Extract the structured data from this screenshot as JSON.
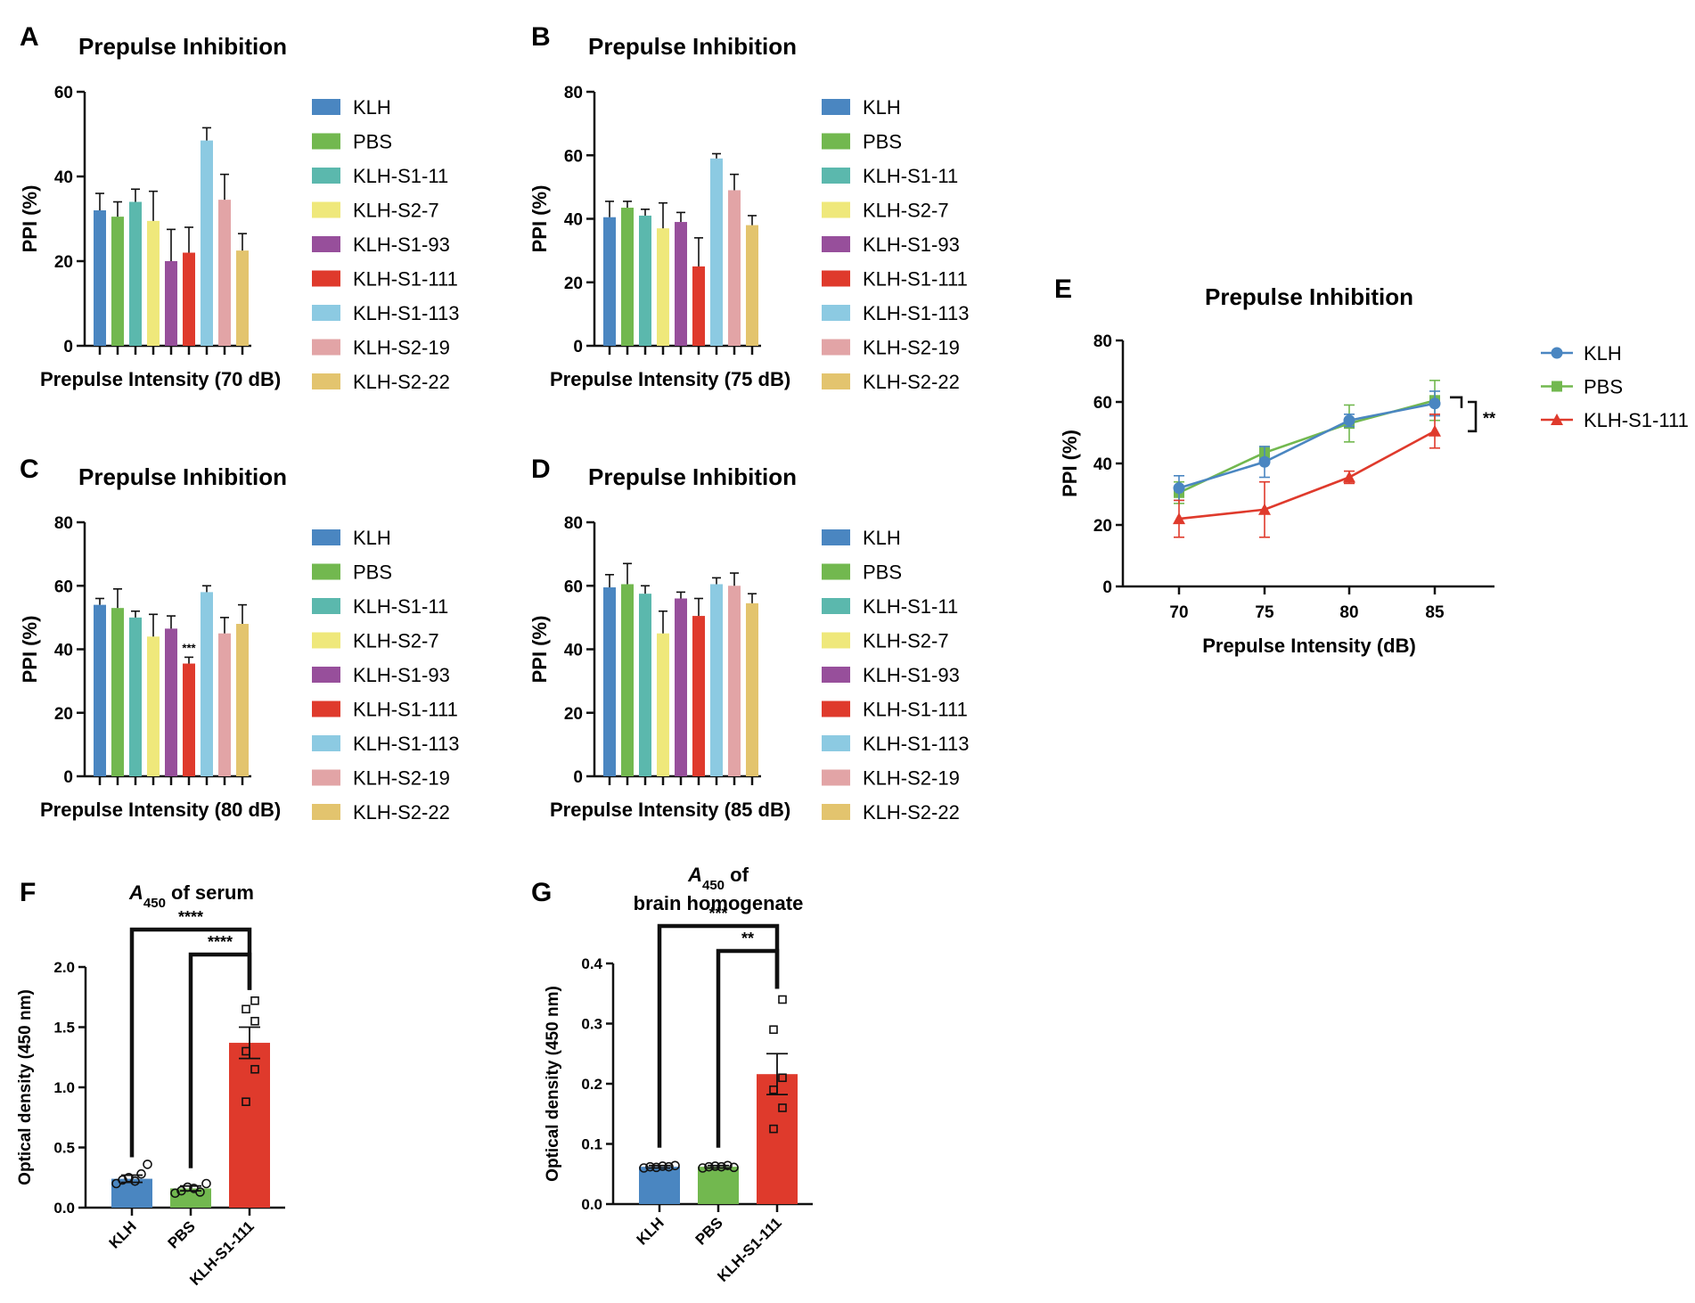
{
  "colors": {
    "KLH": "#4a86c1",
    "PBS": "#72b84f",
    "KLH-S1-11": "#5bb8ad",
    "KLH-S2-7": "#efe87b",
    "KLH-S1-93": "#974f9b",
    "KLH-S1-111": "#df3a2c",
    "KLH-S1-113": "#8ccae2",
    "KLH-S2-19": "#e2a4a6",
    "KLH-S2-22": "#e3c46e"
  },
  "chart_data": [
    {
      "panel": "A",
      "type": "bar",
      "title": "Prepulse Inhibition",
      "xlabel": "Prepulse Intensity (70 dB)",
      "ylabel": "PPI (%)",
      "ylim": [
        0,
        60
      ],
      "yticks": [
        0,
        20,
        40,
        60
      ],
      "categories": [
        "KLH",
        "PBS",
        "KLH-S1-11",
        "KLH-S2-7",
        "KLH-S1-93",
        "KLH-S1-111",
        "KLH-S1-113",
        "KLH-S2-19",
        "KLH-S2-22"
      ],
      "values": [
        32,
        30.5,
        34,
        29.5,
        20,
        22,
        48.5,
        34.5,
        22.5
      ],
      "errors": [
        4,
        3.5,
        3,
        7,
        7.5,
        6,
        3,
        6,
        4
      ],
      "annotations": []
    },
    {
      "panel": "B",
      "type": "bar",
      "title": "Prepulse Inhibition",
      "xlabel": "Prepulse Intensity (75 dB)",
      "ylabel": "PPI (%)",
      "ylim": [
        0,
        80
      ],
      "yticks": [
        0,
        20,
        40,
        60,
        80
      ],
      "categories": [
        "KLH",
        "PBS",
        "KLH-S1-11",
        "KLH-S2-7",
        "KLH-S1-93",
        "KLH-S1-111",
        "KLH-S1-113",
        "KLH-S2-19",
        "KLH-S2-22"
      ],
      "values": [
        40.5,
        43.5,
        41,
        37,
        39,
        25,
        59,
        49,
        38
      ],
      "errors": [
        5,
        2,
        2,
        8,
        3,
        9,
        1.5,
        5,
        3
      ],
      "annotations": []
    },
    {
      "panel": "C",
      "type": "bar",
      "title": "Prepulse Inhibition",
      "xlabel": "Prepulse Intensity (80 dB)",
      "ylabel": "PPI (%)",
      "ylim": [
        0,
        80
      ],
      "yticks": [
        0,
        20,
        40,
        60,
        80
      ],
      "categories": [
        "KLH",
        "PBS",
        "KLH-S1-11",
        "KLH-S2-7",
        "KLH-S1-93",
        "KLH-S1-111",
        "KLH-S1-113",
        "KLH-S2-19",
        "KLH-S2-22"
      ],
      "values": [
        54,
        53,
        50,
        44,
        46.5,
        35.5,
        58,
        45,
        48
      ],
      "errors": [
        2,
        6,
        2,
        7,
        4,
        2,
        2,
        5,
        6
      ],
      "annotations": [
        {
          "index": 5,
          "text": "***"
        }
      ]
    },
    {
      "panel": "D",
      "type": "bar",
      "title": "Prepulse Inhibition",
      "xlabel": "Prepulse Intensity (85 dB)",
      "ylabel": "PPI (%)",
      "ylim": [
        0,
        80
      ],
      "yticks": [
        0,
        20,
        40,
        60,
        80
      ],
      "categories": [
        "KLH",
        "PBS",
        "KLH-S1-11",
        "KLH-S2-7",
        "KLH-S1-93",
        "KLH-S1-111",
        "KLH-S1-113",
        "KLH-S2-19",
        "KLH-S2-22"
      ],
      "values": [
        59.5,
        60.5,
        57.5,
        45,
        56,
        50.5,
        60.5,
        60,
        54.5
      ],
      "errors": [
        4,
        6.5,
        2.5,
        7,
        2,
        5.5,
        2,
        4,
        3
      ],
      "annotations": []
    },
    {
      "panel": "E",
      "type": "line",
      "title": "Prepulse Inhibition",
      "xlabel": "Prepulse Intensity (dB)",
      "ylabel": "PPI (%)",
      "x": [
        70,
        75,
        80,
        85
      ],
      "ylim": [
        0,
        80
      ],
      "yticks": [
        0,
        20,
        40,
        60,
        80
      ],
      "series": [
        {
          "name": "KLH",
          "values": [
            32,
            40.5,
            54,
            59.5
          ],
          "errors": [
            4,
            5,
            2,
            4
          ],
          "marker": "circle"
        },
        {
          "name": "PBS",
          "values": [
            30.5,
            43.5,
            53,
            60.5
          ],
          "errors": [
            3.5,
            2,
            6,
            6.5
          ],
          "marker": "square"
        },
        {
          "name": "KLH-S1-111",
          "values": [
            22,
            25,
            35.5,
            50.5
          ],
          "errors": [
            6,
            9,
            2,
            5.5
          ],
          "marker": "triangle"
        }
      ],
      "significance": "**"
    },
    {
      "panel": "F",
      "type": "bar",
      "title_main": "A",
      "title_sub": "450",
      "title_rest": " of serum",
      "title_line2": "",
      "ylabel": "Optical density (450 nm)",
      "ylim": [
        0,
        2.0
      ],
      "yticks": [
        "0.0",
        "0.5",
        "1.0",
        "1.5",
        "2.0"
      ],
      "ytick_values": [
        0,
        0.5,
        1.0,
        1.5,
        2.0
      ],
      "categories": [
        "KLH",
        "PBS",
        "KLH-S1-111"
      ],
      "values": [
        0.24,
        0.16,
        1.37
      ],
      "errors": [
        0.03,
        0.02,
        0.13
      ],
      "points": [
        [
          0.2,
          0.23,
          0.25,
          0.22,
          0.28,
          0.36
        ],
        [
          0.12,
          0.14,
          0.17,
          0.16,
          0.13,
          0.2
        ],
        [
          0.88,
          1.15,
          1.3,
          1.55,
          1.65,
          1.72
        ]
      ],
      "comparisons": [
        {
          "from": 0,
          "to": 2,
          "text": "****"
        },
        {
          "from": 1,
          "to": 2,
          "text": "****"
        }
      ]
    },
    {
      "panel": "G",
      "type": "bar",
      "title_main": "A",
      "title_sub": "450",
      "title_rest": " of",
      "title_line2": "brain homogenate",
      "ylabel": "Optical density (450 nm)",
      "ylim": [
        0,
        0.4
      ],
      "yticks": [
        "0.0",
        "0.1",
        "0.2",
        "0.3",
        "0.4"
      ],
      "ytick_values": [
        0,
        0.1,
        0.2,
        0.3,
        0.4
      ],
      "categories": [
        "KLH",
        "PBS",
        "KLH-S1-111"
      ],
      "values": [
        0.062,
        0.062,
        0.216
      ],
      "errors": [
        0.002,
        0.002,
        0.034
      ],
      "points": [
        [
          0.06,
          0.062,
          0.061,
          0.063,
          0.062,
          0.064
        ],
        [
          0.06,
          0.062,
          0.063,
          0.062,
          0.064,
          0.061
        ],
        [
          0.125,
          0.16,
          0.19,
          0.21,
          0.29,
          0.34
        ]
      ],
      "comparisons": [
        {
          "from": 0,
          "to": 2,
          "text": "***"
        },
        {
          "from": 1,
          "to": 2,
          "text": "**"
        }
      ]
    }
  ],
  "panel_labels": [
    "A",
    "B",
    "C",
    "D",
    "E",
    "F",
    "G"
  ]
}
